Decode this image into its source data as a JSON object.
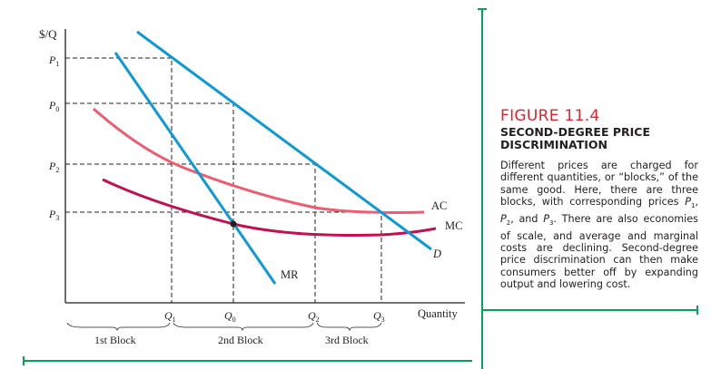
{
  "figure": {
    "number_word": "Figure",
    "number": "11.4",
    "subtitle": "SECOND-DEGREE PRICE DISCRIMINATION",
    "body_pre": "Different prices are charged for different quantities, or “blocks,” of the same good. Here, there are three blocks, with corresponding prices ",
    "p1": "P",
    "p1_sub": "1",
    "p2": "P",
    "p2_sub": "2",
    "p3": "P",
    "p3_sub": "3",
    "sep1": ", ",
    "sep2": ", and ",
    "body_post": ". There are also economies of scale, and average and marginal costs are declining. Second-degree price discrimination can then make consumers better off by expanding output and lowering cost."
  },
  "diagram": {
    "y_axis_label": "$/Q",
    "x_axis_label": "Quantity",
    "price_labels": [
      "P1",
      "P0",
      "P2",
      "P3"
    ],
    "quantity_labels": [
      "Q1",
      "Q0",
      "Q2",
      "Q3"
    ],
    "curve_labels": {
      "ac": "AC",
      "mc": "MC",
      "d": "D",
      "mr": "MR"
    },
    "blocks": [
      "1st Block",
      "2nd Block",
      "3rd Block"
    ]
  },
  "colors": {
    "demand": "#0b9ad6",
    "ac": "#ef5b6f",
    "mc": "#c5104f",
    "rule": "#00a651",
    "title": "#e8202a"
  }
}
